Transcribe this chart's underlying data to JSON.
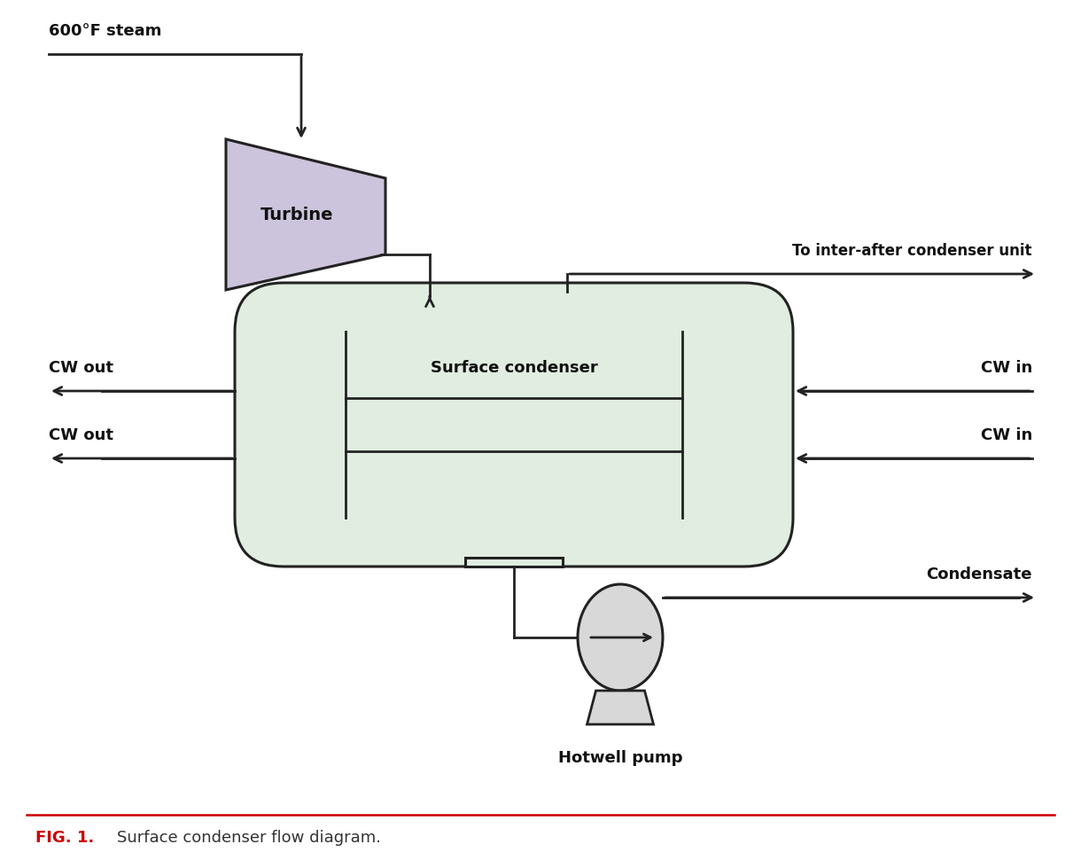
{
  "bg_color": "#ffffff",
  "condenser_color": "#e0ede0",
  "condenser_border": "#222222",
  "turbine_color": "#ccc4dc",
  "turbine_border": "#222222",
  "pump_color": "#d8d8d8",
  "pump_border": "#222222",
  "pipe_color": "#222222",
  "arrow_color": "#222222",
  "label_600F": "600°F steam",
  "label_turbine": "Turbine",
  "label_condenser": "Surface condenser",
  "label_cw_out1": "CW out",
  "label_cw_out2": "CW out",
  "label_cw_in1": "CW in",
  "label_cw_in2": "CW in",
  "label_inter": "To inter-after condenser unit",
  "label_condensate": "Condensate",
  "label_hotwell": "Hotwell pump",
  "figsize": [
    12.2,
    9.62
  ],
  "dpi": 100
}
